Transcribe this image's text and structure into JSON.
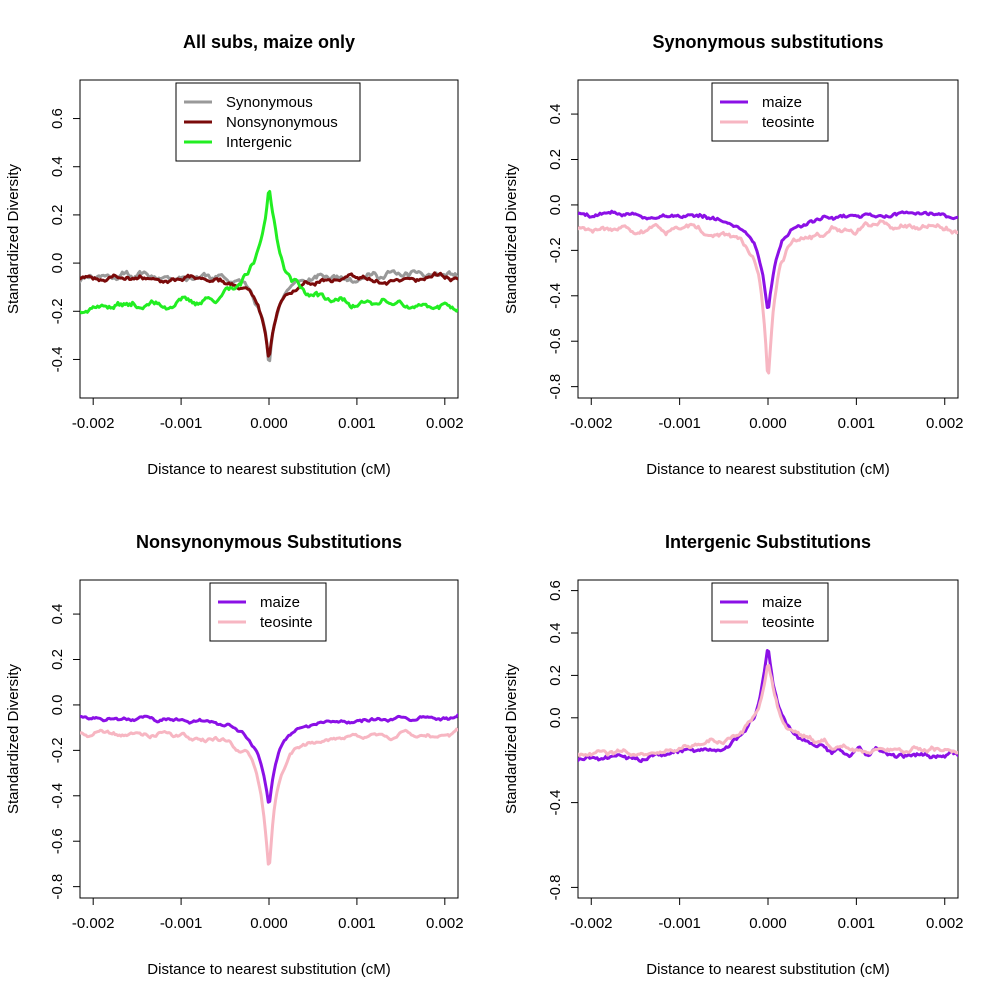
{
  "chart_data": [
    {
      "type": "line",
      "title": "All subs, maize only",
      "xlabel": "Distance to nearest substitution (cM)",
      "ylabel": "Standardized Diversity",
      "xlim": [
        -0.00215,
        0.00215
      ],
      "ylim": [
        -0.56,
        0.76
      ],
      "xticks": [
        "-0.002",
        "-0.001",
        "0.000",
        "0.001",
        "0.002"
      ],
      "xtick_values": [
        -0.002,
        -0.001,
        0,
        0.001,
        0.002
      ],
      "yticks": [
        "-0.4",
        "-0.2",
        "0.0",
        "0.2",
        "0.4",
        "0.6"
      ],
      "ytick_values": [
        -0.4,
        -0.2,
        0,
        0.2,
        0.4,
        0.6
      ],
      "legend_position": "top-center",
      "series": [
        {
          "name": "Synonymous",
          "color": "#999999",
          "base": -0.05,
          "peak": -0.45,
          "width": 7e-05,
          "noise": 0.02,
          "seed": 11
        },
        {
          "name": "Nonsynonymous",
          "color": "#7a0a0a",
          "base": -0.06,
          "peak": -0.43,
          "width": 8e-05,
          "noise": 0.015,
          "seed": 23
        },
        {
          "name": "Intergenic",
          "color": "#22ee22",
          "base": -0.18,
          "peak": 0.33,
          "width": 0.00012,
          "noise": 0.02,
          "seed": 37
        }
      ]
    },
    {
      "type": "line",
      "title": "Synonymous substitutions",
      "xlabel": "Distance to nearest substitution (cM)",
      "ylabel": "Standardized Diversity",
      "xlim": [
        -0.00215,
        0.00215
      ],
      "ylim": [
        -0.85,
        0.55
      ],
      "xticks": [
        "-0.002",
        "-0.001",
        "0.000",
        "0.001",
        "0.002"
      ],
      "xtick_values": [
        -0.002,
        -0.001,
        0,
        0.001,
        0.002
      ],
      "yticks": [
        "-0.8",
        "-0.6",
        "-0.4",
        "-0.2",
        "0.0",
        "0.2",
        "0.4"
      ],
      "ytick_values": [
        -0.8,
        -0.6,
        -0.4,
        -0.2,
        0,
        0.2,
        0.4
      ],
      "legend_position": "top-center",
      "series": [
        {
          "name": "maize",
          "color": "#8b10e6",
          "base": -0.04,
          "peak": -0.48,
          "width": 9e-05,
          "noise": 0.015,
          "seed": 5
        },
        {
          "name": "teosinte",
          "color": "#f7b6c2",
          "base": -0.1,
          "peak": -0.78,
          "width": 7e-05,
          "noise": 0.02,
          "seed": 17
        }
      ]
    },
    {
      "type": "line",
      "title": "Nonsynonymous Substitutions",
      "xlabel": "Distance to nearest substitution (cM)",
      "ylabel": "Standardized Diversity",
      "xlim": [
        -0.00215,
        0.00215
      ],
      "ylim": [
        -0.85,
        0.55
      ],
      "xticks": [
        "-0.002",
        "-0.001",
        "0.000",
        "0.001",
        "0.002"
      ],
      "xtick_values": [
        -0.002,
        -0.001,
        0,
        0.001,
        0.002
      ],
      "yticks": [
        "-0.8",
        "-0.6",
        "-0.4",
        "-0.2",
        "0.0",
        "0.2",
        "0.4"
      ],
      "ytick_values": [
        -0.8,
        -0.6,
        -0.4,
        -0.2,
        0,
        0.2,
        0.4
      ],
      "legend_position": "top-center",
      "series": [
        {
          "name": "maize",
          "color": "#8b10e6",
          "base": -0.06,
          "peak": -0.45,
          "width": 0.0001,
          "noise": 0.012,
          "seed": 29
        },
        {
          "name": "teosinte",
          "color": "#f7b6c2",
          "base": -0.13,
          "peak": -0.74,
          "width": 8e-05,
          "noise": 0.015,
          "seed": 41
        }
      ]
    },
    {
      "type": "line",
      "title": "Intergenic Substitutions",
      "xlabel": "Distance to nearest substitution (cM)",
      "ylabel": "Standardized Diversity",
      "xlim": [
        -0.00215,
        0.00215
      ],
      "ylim": [
        -0.85,
        0.65
      ],
      "xticks": [
        "-0.002",
        "-0.001",
        "0.000",
        "0.001",
        "0.002"
      ],
      "xtick_values": [
        -0.002,
        -0.001,
        0,
        0.001,
        0.002
      ],
      "yticks": [
        "-0.8",
        "-0.4",
        "0.0",
        "0.2",
        "0.4",
        "0.6"
      ],
      "ytick_values": [
        -0.8,
        -0.4,
        0,
        0.2,
        0.4,
        0.6
      ],
      "legend_position": "top-center",
      "series": [
        {
          "name": "maize",
          "color": "#8b10e6",
          "base": -0.18,
          "peak": 0.33,
          "width": 0.00012,
          "noise": 0.02,
          "seed": 53
        },
        {
          "name": "teosinte",
          "color": "#f7b6c2",
          "base": -0.16,
          "peak": 0.26,
          "width": 0.00013,
          "noise": 0.02,
          "seed": 67
        }
      ]
    }
  ]
}
